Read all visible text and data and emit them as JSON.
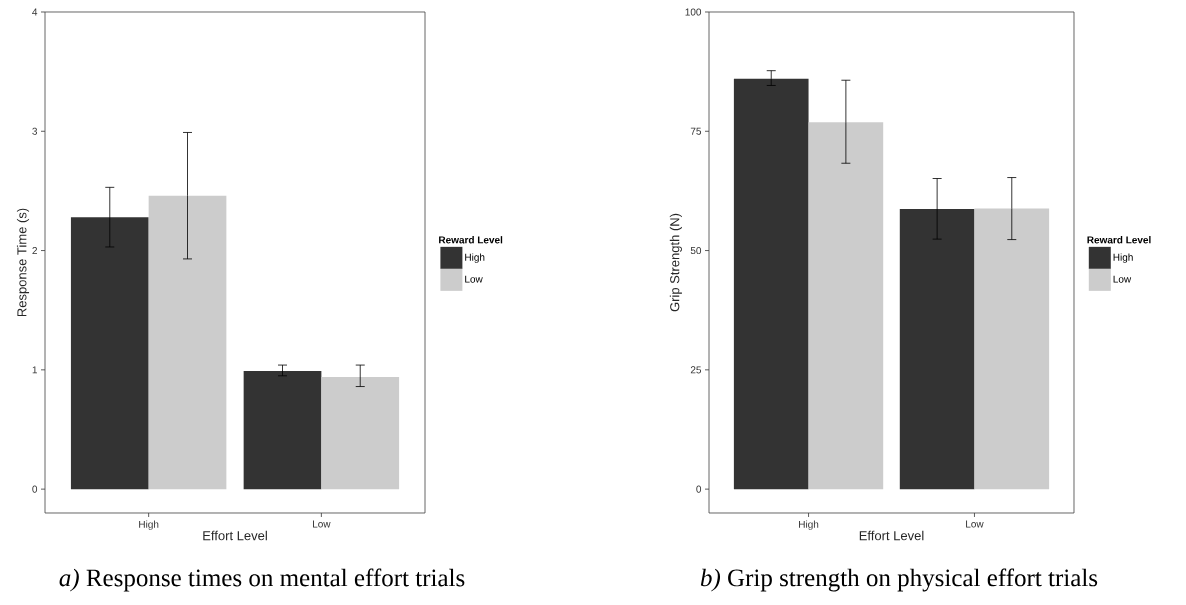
{
  "chart_data": [
    {
      "type": "bar",
      "title": "*a)* Response times on mental effort trials",
      "xlabel": "Effort Level",
      "ylabel": "Response Time (s)",
      "legend_title": "Reward Level",
      "legend": "right",
      "categories": [
        "High",
        "Low"
      ],
      "ylim": [
        -0.2,
        4
      ],
      "yticks": [
        0,
        1,
        2,
        3,
        4
      ],
      "series": [
        {
          "name": "High",
          "color": "#333333",
          "values": [
            2.28,
            0.99
          ],
          "errors": [
            [
              2.03,
              2.53
            ],
            [
              0.95,
              1.04
            ]
          ]
        },
        {
          "name": "Low",
          "color": "#cccccc",
          "values": [
            2.46,
            0.94
          ],
          "errors": [
            [
              1.93,
              2.99
            ],
            [
              0.86,
              1.04
            ]
          ]
        }
      ]
    },
    {
      "type": "bar",
      "title": "*b)* Grip strength on physical effort trials",
      "xlabel": "Effort Level",
      "ylabel": "Grip Strength (N)",
      "legend_title": "Reward Level",
      "legend": "right",
      "categories": [
        "High",
        "Low"
      ],
      "ylim": [
        -5,
        100
      ],
      "yticks": [
        0,
        25,
        50,
        75,
        100
      ],
      "series": [
        {
          "name": "High",
          "color": "#333333",
          "values": [
            86.0,
            58.7
          ],
          "errors": [
            [
              84.6,
              87.7
            ],
            [
              52.4,
              65.1
            ]
          ]
        },
        {
          "name": "Low",
          "color": "#cccccc",
          "values": [
            76.9,
            58.8
          ],
          "errors": [
            [
              68.3,
              85.7
            ],
            [
              52.3,
              65.3
            ]
          ]
        }
      ]
    }
  ]
}
